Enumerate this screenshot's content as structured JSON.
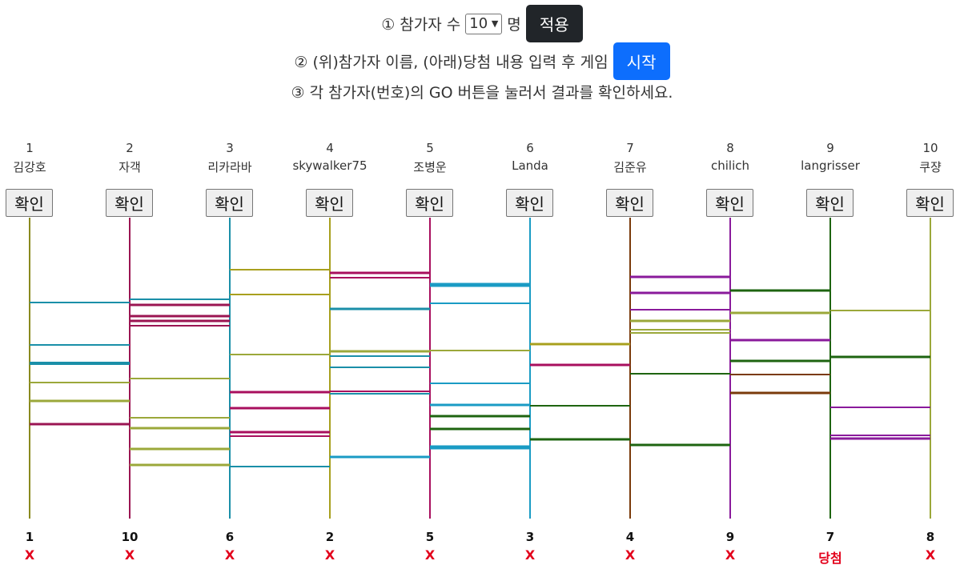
{
  "controls": {
    "step1_prefix": "① 참가자 수",
    "count_value": "10",
    "step1_suffix": "명",
    "apply_label": "적용",
    "step2_text": "② (위)참가자 이름, (아래)당첨 내용 입력 후 게임",
    "start_label": "시작",
    "step3_text": "③ 각 참가자(번호)의 GO 버튼을 눌러서 결과를 확인하세요."
  },
  "players": [
    {
      "num": "1",
      "name": "김강호",
      "button": "확인",
      "color": "#8a8a1e"
    },
    {
      "num": "2",
      "name": "자객",
      "button": "확인",
      "color": "#9b1552"
    },
    {
      "num": "3",
      "name": "리카라바",
      "button": "확인",
      "color": "#1a8fa8"
    },
    {
      "num": "4",
      "name": "skywalker75",
      "button": "확인",
      "color": "#a8a01e"
    },
    {
      "num": "5",
      "name": "조병운",
      "button": "확인",
      "color": "#a80f5e"
    },
    {
      "num": "6",
      "name": "Landa",
      "button": "확인",
      "color": "#1a9bc4"
    },
    {
      "num": "7",
      "name": "김준유",
      "button": "확인",
      "color": "#7a3a0a"
    },
    {
      "num": "8",
      "name": "chilich",
      "button": "확인",
      "color": "#8a1a9b"
    },
    {
      "num": "9",
      "name": "langrisser",
      "button": "확인",
      "color": "#1e6410"
    },
    {
      "num": "10",
      "name": "쿠쟝",
      "button": "확인",
      "color": "#9ba83a"
    }
  ],
  "results": [
    {
      "num": "1",
      "text": "X"
    },
    {
      "num": "10",
      "text": "X"
    },
    {
      "num": "6",
      "text": "X"
    },
    {
      "num": "2",
      "text": "X"
    },
    {
      "num": "5",
      "text": "X"
    },
    {
      "num": "3",
      "text": "X"
    },
    {
      "num": "4",
      "text": "X"
    },
    {
      "num": "9",
      "text": "X"
    },
    {
      "num": "7",
      "text": "당첨"
    },
    {
      "num": "8",
      "text": "X"
    }
  ]
}
